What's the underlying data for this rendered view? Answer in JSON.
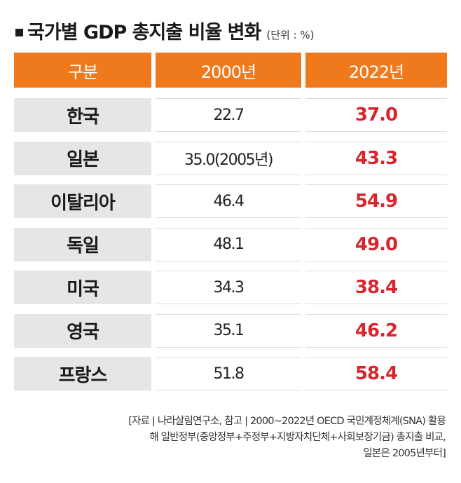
{
  "title": {
    "text": "국가별 GDP 총지출 비율 변화",
    "unit": "(단위 : %)"
  },
  "table": {
    "headers": [
      "구분",
      "2000년",
      "2022년"
    ],
    "rows": [
      {
        "country": "한국",
        "y2000": "22.7",
        "y2022": "37.0"
      },
      {
        "country": "일본",
        "y2000": "35.0(2005년)",
        "y2022": "43.3"
      },
      {
        "country": "이탈리아",
        "y2000": "46.4",
        "y2022": "54.9"
      },
      {
        "country": "독일",
        "y2000": "48.1",
        "y2022": "49.0"
      },
      {
        "country": "미국",
        "y2000": "34.3",
        "y2022": "38.4"
      },
      {
        "country": "영국",
        "y2000": "35.1",
        "y2022": "46.2"
      },
      {
        "country": "프랑스",
        "y2000": "51.8",
        "y2022": "58.4"
      }
    ]
  },
  "note": {
    "line1": "[자료 | 나라살림연구소, 참고 | 2000~2022년 OECD 국민계정체계(SNA) 활용",
    "line2": "해 일반정부(중앙정부+주정부+지방자치단체+사회보장기금) 총지출 비교,",
    "line3": "일본은 2005년부터]"
  },
  "colors": {
    "header_bg": "#ef7a1e",
    "label_bg": "#e6e6e6",
    "highlight_text": "#d6262e"
  }
}
